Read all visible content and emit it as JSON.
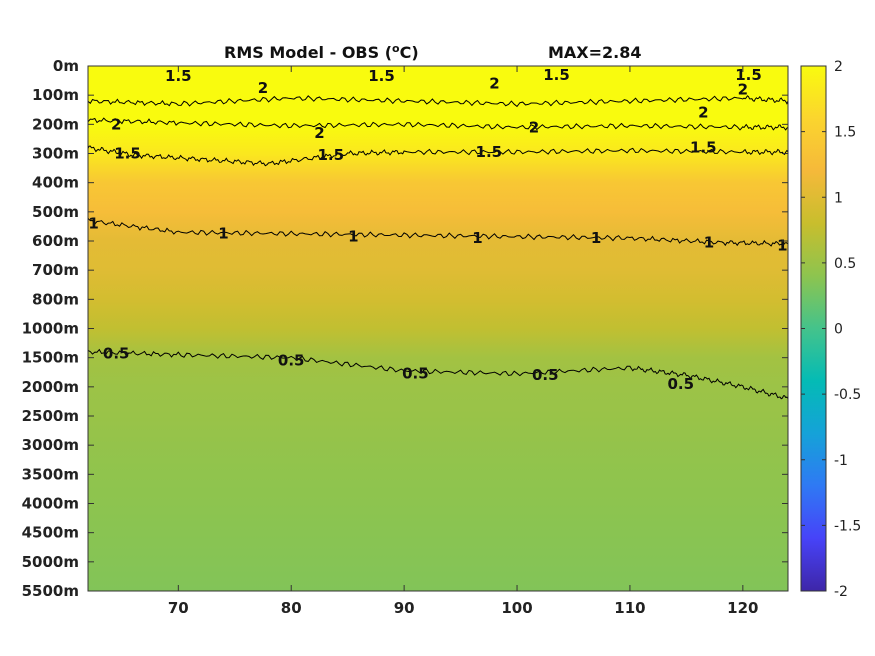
{
  "chart_data": {
    "type": "heatmap",
    "title": "RMS Model - OBS (",
    "title_sup": "o",
    "title_unit": "C)",
    "max_label": "MAX=2.84",
    "x_ticks": [
      70,
      80,
      90,
      100,
      110,
      120
    ],
    "xlim": [
      62,
      124
    ],
    "y_tick_labels": [
      "0m",
      "100m",
      "200m",
      "300m",
      "400m",
      "500m",
      "600m",
      "700m",
      "800m",
      "1000m",
      "1500m",
      "2000m",
      "2500m",
      "3000m",
      "3500m",
      "4000m",
      "4500m",
      "5000m",
      "5500m"
    ],
    "colorbar": {
      "ticks": [
        2,
        1.5,
        1,
        0.5,
        0,
        -0.5,
        -1,
        -1.5,
        -2
      ],
      "tick_labels": [
        "2",
        "1.5",
        "1",
        "0.5",
        "0",
        "-0.5",
        "-1",
        "-1.5",
        "-2"
      ],
      "range": [
        -2,
        2
      ],
      "colors": [
        "#3e26a8",
        "#4743f8",
        "#2f79f4",
        "#15a2d8",
        "#04bbb5",
        "#44c38b",
        "#8dc44f",
        "#c8be2d",
        "#f5b93a",
        "#fbd52e",
        "#f9fb0e"
      ]
    },
    "depth_profile": [
      2.0,
      2.0,
      2.1,
      1.8,
      1.4,
      1.25,
      1.05,
      1.0,
      0.9,
      0.75,
      0.55,
      0.5,
      0.48,
      0.45,
      0.42,
      0.4,
      0.38,
      0.36,
      0.34
    ],
    "contours": [
      {
        "level": "2",
        "points": [
          [
            62,
            1.2
          ],
          [
            70,
            1.3
          ],
          [
            80,
            1.1
          ],
          [
            90,
            1.2
          ],
          [
            100,
            1.3
          ],
          [
            110,
            1.2
          ],
          [
            120,
            1.1
          ],
          [
            124,
            1.2
          ]
        ]
      },
      {
        "level": "2",
        "points": [
          [
            62,
            1.85
          ],
          [
            70,
            1.95
          ],
          [
            80,
            2.05
          ],
          [
            90,
            2.0
          ],
          [
            100,
            2.1
          ],
          [
            110,
            2.05
          ],
          [
            120,
            2.1
          ],
          [
            124,
            2.1
          ]
        ]
      },
      {
        "level": "1.5",
        "points": [
          [
            62,
            2.8
          ],
          [
            66,
            3.05
          ],
          [
            72,
            3.2
          ],
          [
            78,
            3.35
          ],
          [
            85,
            3.0
          ],
          [
            90,
            2.95
          ],
          [
            100,
            2.95
          ],
          [
            110,
            2.9
          ],
          [
            120,
            2.95
          ],
          [
            124,
            2.95
          ]
        ]
      },
      {
        "level": "1",
        "points": [
          [
            62,
            5.3
          ],
          [
            70,
            5.7
          ],
          [
            80,
            5.75
          ],
          [
            90,
            5.8
          ],
          [
            100,
            5.85
          ],
          [
            110,
            5.9
          ],
          [
            118,
            6.05
          ],
          [
            124,
            6.1
          ]
        ]
      },
      {
        "level": "0.5",
        "points": [
          [
            62,
            9.8
          ],
          [
            70,
            9.9
          ],
          [
            80,
            10.0
          ],
          [
            90,
            10.45
          ],
          [
            100,
            10.55
          ],
          [
            110,
            10.35
          ],
          [
            115,
            10.6
          ],
          [
            120,
            11.0
          ],
          [
            124,
            11.4
          ]
        ]
      }
    ],
    "contour_labels": [
      {
        "text": "1.5",
        "x": 70,
        "y": 0.35
      },
      {
        "text": "1.5",
        "x": 88,
        "y": 0.35
      },
      {
        "text": "1.5",
        "x": 103.5,
        "y": 0.3
      },
      {
        "text": "1.5",
        "x": 120.5,
        "y": 0.3
      },
      {
        "text": "2",
        "x": 77.5,
        "y": 0.75
      },
      {
        "text": "2",
        "x": 98,
        "y": 0.6
      },
      {
        "text": "2",
        "x": 120,
        "y": 0.8
      },
      {
        "text": "2",
        "x": 64.5,
        "y": 2.0
      },
      {
        "text": "2",
        "x": 82.5,
        "y": 2.3
      },
      {
        "text": "2",
        "x": 101.5,
        "y": 2.1
      },
      {
        "text": "2",
        "x": 116.5,
        "y": 1.6
      },
      {
        "text": "1.5",
        "x": 65.5,
        "y": 3.0
      },
      {
        "text": "1.5",
        "x": 83.5,
        "y": 3.05
      },
      {
        "text": "1.5",
        "x": 97.5,
        "y": 2.95
      },
      {
        "text": "1.5",
        "x": 116.5,
        "y": 2.8
      },
      {
        "text": "1",
        "x": 62.5,
        "y": 5.4
      },
      {
        "text": "1",
        "x": 74,
        "y": 5.75
      },
      {
        "text": "1",
        "x": 85.5,
        "y": 5.85
      },
      {
        "text": "1",
        "x": 96.5,
        "y": 5.9
      },
      {
        "text": "1",
        "x": 107,
        "y": 5.9
      },
      {
        "text": "1",
        "x": 117,
        "y": 6.05
      },
      {
        "text": "1",
        "x": 123.5,
        "y": 6.15
      },
      {
        "text": "0.5",
        "x": 64.5,
        "y": 9.85
      },
      {
        "text": "0.5",
        "x": 80,
        "y": 10.1
      },
      {
        "text": "0.5",
        "x": 91,
        "y": 10.55
      },
      {
        "text": "0.5",
        "x": 102.5,
        "y": 10.6
      },
      {
        "text": "0.5",
        "x": 114.5,
        "y": 10.9
      }
    ]
  }
}
